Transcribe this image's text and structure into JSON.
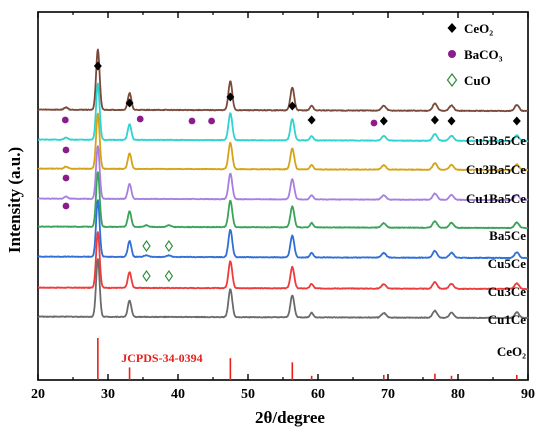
{
  "chart_data": {
    "type": "line",
    "xlabel": "2θ/degree",
    "ylabel": "Intensity (a.u.)",
    "xlim": [
      20,
      90
    ],
    "xticks": [
      "20",
      "30",
      "40",
      "50",
      "60",
      "70",
      "80",
      "90"
    ],
    "grid": false,
    "legend_position": "top-right",
    "legend": [
      {
        "label": "CeO₂",
        "marker": "diamond-filled",
        "color": "#000000"
      },
      {
        "label": "BaCO₃",
        "marker": "circle",
        "color": "#8a1c8c"
      },
      {
        "label": "CuO",
        "marker": "diamond-open",
        "color": "#2e8b3a"
      }
    ],
    "reference": {
      "label": "JCPDS-34-0394",
      "color": "#e8201a",
      "peaks": [
        {
          "x": 28.55,
          "rel": 1.0
        },
        {
          "x": 33.08,
          "rel": 0.3
        },
        {
          "x": 47.48,
          "rel": 0.52
        },
        {
          "x": 56.33,
          "rel": 0.42
        },
        {
          "x": 59.09,
          "rel": 0.1
        },
        {
          "x": 69.4,
          "rel": 0.12
        },
        {
          "x": 76.7,
          "rel": 0.15
        },
        {
          "x": 79.07,
          "rel": 0.1
        },
        {
          "x": 88.4,
          "rel": 0.12
        }
      ]
    },
    "series": [
      {
        "name": "CeO₂",
        "color": "#000000",
        "peak_scale": 0.0,
        "baseline": 0,
        "cuo": false,
        "baco3": false
      },
      {
        "name": "Cu1Ce",
        "color": "#6b6b6b",
        "peak_scale": 1.0,
        "baseline": 1,
        "cuo": false,
        "baco3": false
      },
      {
        "name": "Cu3Ce",
        "color": "#ee3b3b",
        "peak_scale": 1.0,
        "baseline": 2,
        "cuo": false,
        "baco3": false
      },
      {
        "name": "Cu5Ce",
        "color": "#2f6fd6",
        "peak_scale": 1.0,
        "baseline": 3,
        "cuo": true,
        "baco3": false
      },
      {
        "name": "Ba5Ce",
        "color": "#3aa35b",
        "peak_scale": 1.0,
        "baseline": 4,
        "cuo": true,
        "baco3": false
      },
      {
        "name": "Cu1Ba5Ce",
        "color": "#a77fe0",
        "peak_scale": 1.0,
        "baseline": 5,
        "cuo": false,
        "baco3": true
      },
      {
        "name": "Cu3Ba5Ce",
        "color": "#d6a317",
        "peak_scale": 1.0,
        "baseline": 6,
        "cuo": false,
        "baco3": true
      },
      {
        "name": "Cu5Ba5Ce",
        "color": "#2fd3d0",
        "peak_scale": 1.0,
        "baseline": 7,
        "cuo": false,
        "baco3": true
      },
      {
        "name": "",
        "color": "#7a4a3a",
        "peak_scale": 1.0,
        "baseline": 8,
        "cuo": false,
        "baco3": true
      }
    ],
    "peaks": [
      {
        "x": 28.55,
        "h": 1.0,
        "w": 0.55
      },
      {
        "x": 33.08,
        "h": 0.28,
        "w": 0.55
      },
      {
        "x": 47.48,
        "h": 0.48,
        "w": 0.6
      },
      {
        "x": 56.33,
        "h": 0.38,
        "w": 0.6
      },
      {
        "x": 59.09,
        "h": 0.08,
        "w": 0.5
      },
      {
        "x": 69.4,
        "h": 0.08,
        "w": 0.7
      },
      {
        "x": 76.7,
        "h": 0.12,
        "w": 0.7
      },
      {
        "x": 79.07,
        "h": 0.09,
        "w": 0.7
      },
      {
        "x": 88.4,
        "h": 0.1,
        "w": 0.7
      }
    ],
    "markers": {
      "ceo2_top": [
        28.55,
        33.08,
        47.48,
        56.33,
        59.09,
        69.4,
        76.7,
        79.07,
        88.4
      ],
      "baco3_top": [
        23.9,
        34.6,
        42.0,
        44.8,
        68.0
      ],
      "baco3_rows": [
        24.0
      ],
      "cuo_rows": [
        35.5,
        38.7
      ]
    }
  }
}
